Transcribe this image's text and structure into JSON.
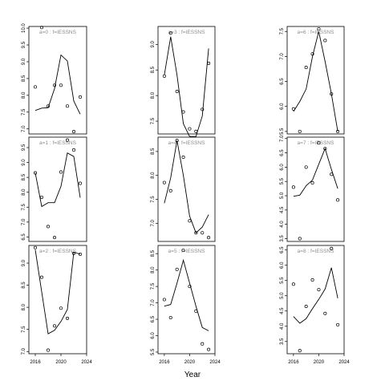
{
  "xlabel": "Year",
  "chart_data": [
    {
      "type": "line",
      "title": "a=0 : f=IESSNS",
      "xlim": [
        2015,
        2024
      ],
      "ylim": [
        6.85,
        10.05
      ],
      "yticks": [
        7.0,
        7.5,
        8.0,
        8.5,
        9.0,
        9.5,
        10.0
      ],
      "xticks": [],
      "xtick_labels": [],
      "points": {
        "x": [
          2016,
          2017,
          2018,
          2019,
          2020,
          2021,
          2022,
          2023
        ],
        "y": [
          8.25,
          10.02,
          7.68,
          8.3,
          8.3,
          7.68,
          6.92,
          7.95
        ]
      },
      "line": {
        "x": [
          2016,
          2017,
          2018,
          2019,
          2020,
          2021,
          2022,
          2023
        ],
        "y": [
          7.55,
          7.62,
          7.63,
          8.2,
          9.2,
          9.02,
          7.83,
          7.44
        ]
      }
    },
    {
      "type": "line",
      "title": "a=3 : f=IESSNS",
      "xlim": [
        2015,
        2024
      ],
      "ylim": [
        7.25,
        9.35
      ],
      "yticks": [
        7.5,
        8.0,
        8.5,
        9.0
      ],
      "xticks": [],
      "xtick_labels": [],
      "points": {
        "x": [
          2016,
          2017,
          2018,
          2019,
          2020,
          2021,
          2022,
          2023
        ],
        "y": [
          8.38,
          9.22,
          8.08,
          7.68,
          7.35,
          7.3,
          7.73,
          8.63
        ]
      },
      "line": {
        "x": [
          2016,
          2017,
          2018,
          2019,
          2020,
          2021,
          2022,
          2023
        ],
        "y": [
          8.4,
          9.15,
          8.4,
          7.45,
          7.2,
          7.2,
          7.6,
          8.92
        ]
      }
    },
    {
      "type": "line",
      "title": "a=6 : f=IESSNS",
      "xlim": [
        2015,
        2024
      ],
      "ylim": [
        5.45,
        7.6
      ],
      "yticks": [
        5.5,
        6.0,
        6.5,
        7.0,
        7.5
      ],
      "xticks": [],
      "xtick_labels": [],
      "points": {
        "x": [
          2016,
          2017,
          2018,
          2019,
          2020,
          2021,
          2022,
          2023
        ],
        "y": [
          5.95,
          5.5,
          6.78,
          7.05,
          7.55,
          7.32,
          6.25,
          5.5
        ]
      },
      "line": {
        "x": [
          2016,
          2017,
          2018,
          2019,
          2020,
          2021,
          2022,
          2023
        ],
        "y": [
          5.9,
          6.1,
          6.35,
          7.0,
          7.5,
          6.9,
          6.25,
          5.5
        ]
      }
    },
    {
      "type": "line",
      "title": "a=1 : f=IESSNS",
      "xlim": [
        2015,
        2024
      ],
      "ylim": [
        6.35,
        9.85
      ],
      "yticks": [
        6.5,
        7.0,
        7.5,
        8.0,
        8.5,
        9.0,
        9.5
      ],
      "xticks": [],
      "xtick_labels": [],
      "points": {
        "x": [
          2016,
          2017,
          2018,
          2019,
          2020,
          2021,
          2022,
          2023
        ],
        "y": [
          8.65,
          7.83,
          6.85,
          6.48,
          8.68,
          9.75,
          9.42,
          8.3
        ]
      },
      "line": {
        "x": [
          2016,
          2017,
          2018,
          2019,
          2020,
          2021,
          2022,
          2023
        ],
        "y": [
          8.65,
          7.52,
          7.65,
          7.65,
          8.2,
          9.32,
          9.2,
          7.82
        ]
      }
    },
    {
      "type": "line",
      "title": "a=4 : f=IESSNS",
      "xlim": [
        2015,
        2024
      ],
      "ylim": [
        6.62,
        8.8
      ],
      "yticks": [
        7.0,
        7.5,
        8.0,
        8.5
      ],
      "xticks": [],
      "xtick_labels": [],
      "points": {
        "x": [
          2016,
          2017,
          2018,
          2019,
          2020,
          2021,
          2022,
          2023
        ],
        "y": [
          7.85,
          7.68,
          8.73,
          8.38,
          7.05,
          6.8,
          6.8,
          6.7
        ]
      },
      "line": {
        "x": [
          2016,
          2017,
          2018,
          2019,
          2020,
          2021,
          2022,
          2023
        ],
        "y": [
          7.42,
          7.95,
          8.73,
          8.0,
          7.15,
          6.8,
          6.92,
          7.18
        ]
      }
    },
    {
      "type": "line",
      "title": "a=7 : f=IESSNS",
      "xlim": [
        2015,
        2024
      ],
      "ylim": [
        3.4,
        7.05
      ],
      "yticks": [
        3.5,
        4.0,
        4.5,
        5.0,
        5.5,
        6.0,
        6.5,
        7.0
      ],
      "xticks": [],
      "xtick_labels": [],
      "points": {
        "x": [
          2016,
          2017,
          2018,
          2019,
          2020,
          2021,
          2022,
          2023
        ],
        "y": [
          5.3,
          3.5,
          6.0,
          5.45,
          6.85,
          6.65,
          5.75,
          4.85
        ]
      },
      "line": {
        "x": [
          2016,
          2017,
          2018,
          2019,
          2020,
          2021,
          2022,
          2023
        ],
        "y": [
          4.98,
          5.02,
          5.35,
          5.55,
          6.1,
          6.65,
          5.92,
          5.25
        ]
      }
    },
    {
      "type": "line",
      "title": "a=2 : f=IESSNS",
      "xlim": [
        2015,
        2024
      ],
      "ylim": [
        6.95,
        9.4
      ],
      "yticks": [
        7.0,
        7.5,
        8.0,
        8.5,
        9.0
      ],
      "xticks": [
        2016,
        2020,
        2024
      ],
      "xtick_labels": [
        "2016",
        "2020",
        "2024"
      ],
      "points": {
        "x": [
          2016,
          2017,
          2018,
          2019,
          2020,
          2021,
          2022,
          2023
        ],
        "y": [
          9.35,
          8.68,
          7.03,
          7.58,
          7.98,
          7.75,
          9.22,
          9.2
        ]
      },
      "line": {
        "x": [
          2016,
          2017,
          2018,
          2019,
          2020,
          2021,
          2022,
          2023
        ],
        "y": [
          9.3,
          8.35,
          7.4,
          7.48,
          7.68,
          7.95,
          9.25,
          9.2
        ]
      }
    },
    {
      "type": "line",
      "title": "a=5 : f=IESSNS",
      "xlim": [
        2015,
        2024
      ],
      "ylim": [
        5.45,
        8.75
      ],
      "yticks": [
        5.5,
        6.0,
        6.5,
        7.0,
        7.5,
        8.0,
        8.5
      ],
      "xticks": [
        2016,
        2020,
        2024
      ],
      "xtick_labels": [
        "2016",
        "2020",
        "2024"
      ],
      "points": {
        "x": [
          2016,
          2017,
          2018,
          2019,
          2020,
          2021,
          2022,
          2023
        ],
        "y": [
          7.1,
          6.55,
          8.02,
          8.6,
          7.5,
          6.75,
          5.75,
          5.58
        ]
      },
      "line": {
        "x": [
          2016,
          2017,
          2018,
          2019,
          2020,
          2021,
          2022,
          2023
        ],
        "y": [
          6.9,
          6.95,
          7.6,
          8.3,
          7.6,
          6.9,
          6.25,
          6.15
        ]
      }
    },
    {
      "type": "line",
      "title": "a=8 : f=IESSNS",
      "xlim": [
        2015,
        2024
      ],
      "ylim": [
        3.1,
        6.65
      ],
      "yticks": [
        3.5,
        4.0,
        4.5,
        5.0,
        5.5,
        6.0,
        6.5
      ],
      "xticks": [
        2016,
        2020,
        2024
      ],
      "xtick_labels": [
        "2016",
        "2020",
        "2024"
      ],
      "points": {
        "x": [
          2016,
          2017,
          2018,
          2019,
          2020,
          2021,
          2022,
          2023
        ],
        "y": [
          5.38,
          3.2,
          4.65,
          5.52,
          5.2,
          4.42,
          6.55,
          4.05
        ]
      },
      "line": {
        "x": [
          2016,
          2017,
          2018,
          2019,
          2020,
          2021,
          2022,
          2023
        ],
        "y": [
          4.32,
          4.1,
          4.25,
          4.58,
          4.88,
          5.22,
          5.92,
          4.92
        ]
      }
    }
  ]
}
